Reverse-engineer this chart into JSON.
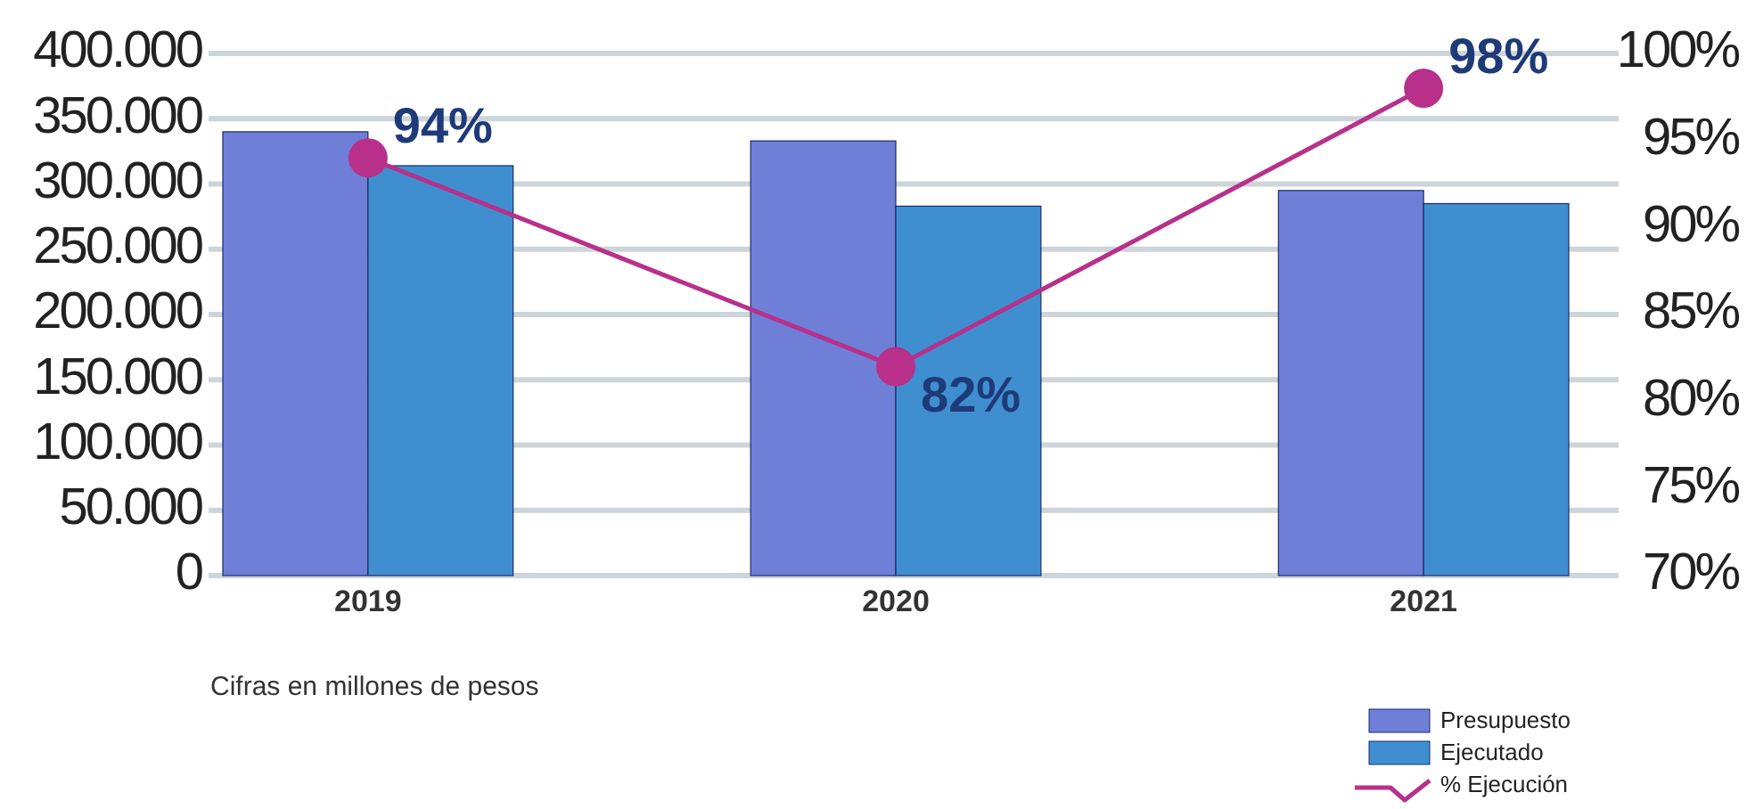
{
  "chart_data": {
    "type": "bar",
    "categories": [
      "2019",
      "2020",
      "2021"
    ],
    "series": [
      {
        "name": "Presupuesto",
        "color": "#6f7fd8",
        "values": [
          340000,
          333000,
          295000
        ]
      },
      {
        "name": "Ejecutado",
        "color": "#3f8fd0",
        "values": [
          314000,
          283000,
          285000
        ]
      },
      {
        "name": "% Ejecución",
        "type": "line",
        "axis": "y2",
        "color": "#b8308a",
        "values": [
          94,
          82,
          98
        ],
        "value_labels": [
          "94%",
          "82%",
          "98%"
        ],
        "marker": "circle"
      }
    ],
    "ylim": [
      0,
      400000
    ],
    "yticks": [
      {
        "value": 0,
        "label": "0"
      },
      {
        "value": 50000,
        "label": "50.000"
      },
      {
        "value": 100000,
        "label": "100.000"
      },
      {
        "value": 150000,
        "label": "150.000"
      },
      {
        "value": 200000,
        "label": "200.000"
      },
      {
        "value": 250000,
        "label": "250.000"
      },
      {
        "value": 300000,
        "label": "300.000"
      },
      {
        "value": 350000,
        "label": "350.000"
      },
      {
        "value": 400000,
        "label": "400.000"
      }
    ],
    "y2lim": [
      70,
      100
    ],
    "y2ticks": [
      {
        "value": 70,
        "label": "70%"
      },
      {
        "value": 75,
        "label": "75%"
      },
      {
        "value": 80,
        "label": "80%"
      },
      {
        "value": 85,
        "label": "85%"
      },
      {
        "value": 90,
        "label": "90%"
      },
      {
        "value": 95,
        "label": "95%"
      },
      {
        "value": 100,
        "label": "100%"
      }
    ],
    "grid": "y",
    "legend": "bottom right",
    "annotations": [
      "Cifras en millones de pesos"
    ]
  }
}
